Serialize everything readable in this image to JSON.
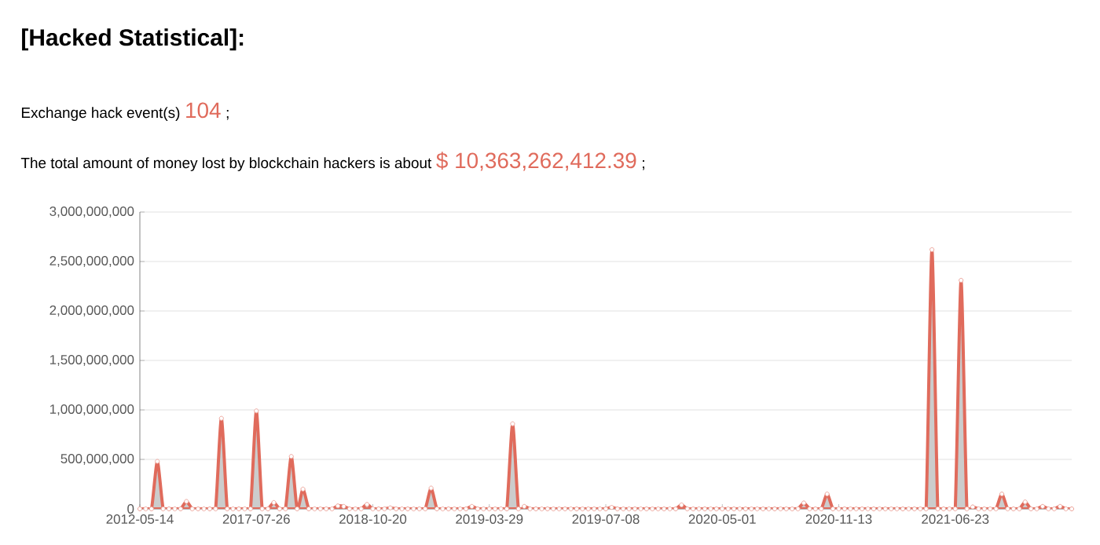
{
  "chart_data": {
    "type": "area",
    "title": "[Hacked Statistical]:",
    "annotations": [
      "Exchange hack event(s)",
      "104",
      ";",
      "The total amount of money lost by blockchain hackers is about",
      "$ 10,363,262,412.39",
      ";"
    ],
    "categories": [
      "2012-05-14",
      null,
      null,
      null,
      null,
      null,
      null,
      null,
      null,
      null,
      null,
      null,
      null,
      null,
      null,
      null,
      null,
      null,
      null,
      null,
      "2017-07-26",
      null,
      null,
      null,
      null,
      null,
      null,
      null,
      null,
      null,
      null,
      null,
      null,
      null,
      null,
      null,
      null,
      null,
      null,
      null,
      "2018-10-20",
      null,
      null,
      null,
      null,
      null,
      null,
      null,
      null,
      null,
      null,
      null,
      null,
      null,
      null,
      null,
      null,
      null,
      null,
      null,
      "2019-03-29",
      null,
      null,
      null,
      null,
      null,
      null,
      null,
      null,
      null,
      null,
      null,
      null,
      null,
      null,
      null,
      null,
      null,
      null,
      null,
      "2019-07-08",
      null,
      null,
      null,
      null,
      null,
      null,
      null,
      null,
      null,
      null,
      null,
      null,
      null,
      null,
      null,
      null,
      null,
      null,
      null,
      "2020-05-01",
      null,
      null,
      null,
      null,
      null,
      null,
      null,
      null,
      null,
      null,
      null,
      null,
      null,
      null,
      null,
      null,
      null,
      null,
      null,
      "2020-11-13",
      null,
      null,
      null,
      null,
      null,
      null,
      null,
      null,
      null,
      null,
      null,
      null,
      null,
      null,
      null,
      null,
      null,
      null,
      null,
      "2021-06-23",
      null,
      null,
      null,
      null,
      null,
      null,
      null,
      null,
      null,
      null,
      null,
      null,
      null,
      null,
      null,
      null,
      null,
      null,
      null,
      null
    ],
    "values": [
      0,
      0,
      0,
      480000000,
      0,
      0,
      0,
      0,
      75000000,
      0,
      0,
      0,
      0,
      0,
      915000000,
      0,
      0,
      0,
      0,
      0,
      990000000,
      0,
      0,
      64000000,
      0,
      0,
      530000000,
      0,
      200000000,
      0,
      0,
      0,
      0,
      0,
      30000000,
      25000000,
      0,
      0,
      0,
      45000000,
      0,
      0,
      0,
      10000000,
      0,
      0,
      0,
      0,
      0,
      0,
      210000000,
      0,
      0,
      0,
      0,
      0,
      0,
      25000000,
      0,
      0,
      0,
      0,
      0,
      0,
      860000000,
      0,
      25000000,
      0,
      0,
      0,
      0,
      0,
      0,
      0,
      0,
      0,
      0,
      0,
      0,
      0,
      0,
      15000000,
      0,
      0,
      0,
      0,
      0,
      0,
      0,
      0,
      0,
      0,
      0,
      40000000,
      0,
      0,
      0,
      0,
      0,
      0,
      0,
      0,
      0,
      0,
      0,
      0,
      0,
      0,
      0,
      0,
      0,
      0,
      0,
      0,
      60000000,
      0,
      0,
      0,
      150000000,
      0,
      0,
      0,
      0,
      0,
      0,
      0,
      0,
      0,
      0,
      0,
      0,
      0,
      0,
      0,
      0,
      0,
      2620000000,
      0,
      0,
      0,
      0,
      2310000000,
      0,
      20000000,
      0,
      0,
      0,
      0,
      150000000,
      0,
      0,
      0,
      70000000,
      0,
      0,
      25000000,
      0,
      0,
      25000000,
      0,
      0
    ],
    "color": "#e06b5c",
    "ylim": [
      0,
      3000000000
    ],
    "yticks": [
      {
        "value": 0,
        "label": "0"
      },
      {
        "value": 500000000,
        "label": "500,000,000"
      },
      {
        "value": 1000000000,
        "label": "1,000,000,000"
      },
      {
        "value": 1500000000,
        "label": "1,500,000,000"
      },
      {
        "value": 2000000000,
        "label": "2,000,000,000"
      },
      {
        "value": 2500000000,
        "label": "2,500,000,000"
      },
      {
        "value": 3000000000,
        "label": "3,000,000,000"
      }
    ],
    "grid": "y",
    "marker": "circle"
  }
}
